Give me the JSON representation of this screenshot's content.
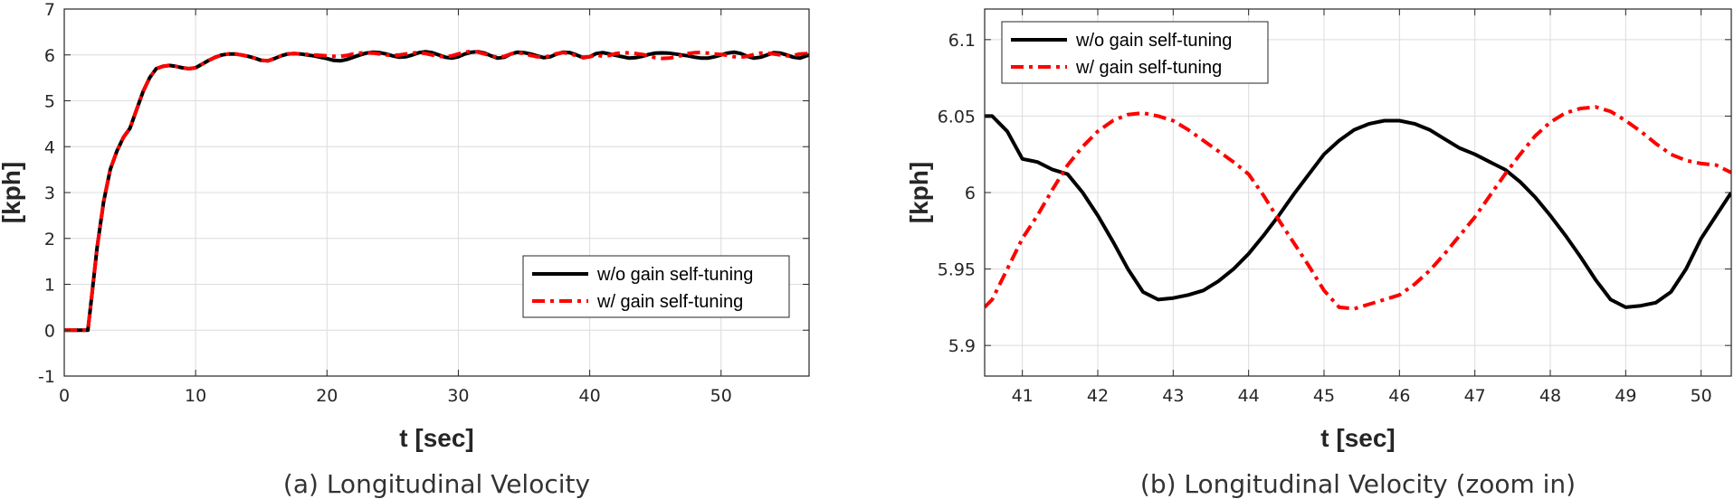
{
  "chart_data": [
    {
      "type": "line",
      "caption": "(a) Longitudinal Velocity",
      "xlabel": "t [sec]",
      "ylabel": "[kph]",
      "xlim": [
        0,
        56.7
      ],
      "ylim": [
        -1,
        7
      ],
      "xticks": [
        0,
        10,
        20,
        30,
        40,
        50
      ],
      "yticks": [
        -1,
        0,
        1,
        2,
        3,
        4,
        5,
        6,
        7
      ],
      "grid": true,
      "legend_position": "lower-right",
      "series": [
        {
          "name": "w/o gain self-tuning",
          "color": "#000000",
          "style": "solid",
          "x": [
            0,
            1.8,
            2,
            2.5,
            3,
            3.5,
            4,
            4.5,
            5,
            5.5,
            6,
            6.5,
            7,
            7.5,
            8,
            8.5,
            9,
            9.5,
            10,
            10.5,
            11,
            11.5,
            12,
            12.5,
            13,
            13.5,
            14,
            14.5,
            15,
            15.5,
            16,
            16.5,
            17,
            17.5,
            18,
            18.5,
            19,
            19.5,
            20,
            20.5,
            21,
            21.5,
            22,
            22.5,
            23,
            23.5,
            24,
            24.5,
            25,
            25.5,
            26,
            26.5,
            27,
            27.5,
            28,
            28.5,
            29,
            29.5,
            30,
            30.5,
            31,
            31.5,
            32,
            32.5,
            33,
            33.5,
            34,
            34.5,
            35,
            35.5,
            36,
            36.5,
            37,
            37.5,
            38,
            38.5,
            39,
            39.5,
            40,
            40.5,
            41,
            41.5,
            42,
            42.5,
            43,
            43.5,
            44,
            44.5,
            45,
            45.5,
            46,
            46.5,
            47,
            47.5,
            48,
            48.5,
            49,
            49.5,
            50,
            50.5,
            51,
            51.5,
            52,
            52.5,
            53,
            53.5,
            54,
            54.5,
            55,
            55.5,
            56,
            56.7
          ],
          "y": [
            0,
            0,
            0.5,
            1.8,
            2.8,
            3.5,
            3.9,
            4.2,
            4.4,
            4.8,
            5.2,
            5.5,
            5.7,
            5.75,
            5.77,
            5.75,
            5.72,
            5.7,
            5.72,
            5.8,
            5.88,
            5.95,
            6.0,
            6.02,
            6.02,
            6.0,
            5.97,
            5.93,
            5.88,
            5.87,
            5.92,
            5.98,
            6.02,
            6.03,
            6.02,
            6.0,
            5.98,
            5.95,
            5.92,
            5.88,
            5.87,
            5.9,
            5.95,
            6.0,
            6.04,
            6.06,
            6.05,
            6.02,
            5.98,
            5.95,
            5.96,
            6.0,
            6.05,
            6.07,
            6.05,
            6.0,
            5.95,
            5.93,
            5.96,
            6.02,
            6.06,
            6.07,
            6.04,
            5.98,
            5.93,
            5.95,
            6.02,
            6.06,
            6.05,
            6.02,
            5.98,
            5.94,
            5.96,
            6.02,
            6.06,
            6.05,
            6.0,
            5.94,
            5.96,
            6.03,
            6.05,
            6.02,
            5.99,
            5.96,
            5.93,
            5.94,
            5.97,
            6.01,
            6.04,
            6.045,
            6.04,
            6.02,
            6.0,
            5.98,
            5.95,
            5.93,
            5.93,
            5.96,
            6.0,
            6.04,
            6.06,
            6.03,
            5.97,
            5.93,
            5.95,
            6.0,
            6.05,
            6.04,
            6.0,
            5.95,
            5.93,
            6.0
          ]
        },
        {
          "name": "w/ gain self-tuning",
          "color": "#ff0000",
          "style": "dashdot",
          "x": [
            0,
            1.8,
            2,
            2.5,
            3,
            3.5,
            4,
            4.5,
            5,
            5.5,
            6,
            6.5,
            7,
            7.5,
            8,
            8.5,
            9,
            9.5,
            10,
            10.5,
            11,
            11.5,
            12,
            12.5,
            13,
            13.5,
            14,
            14.5,
            15,
            15.5,
            16,
            16.5,
            17,
            17.5,
            18,
            18.5,
            19,
            19.5,
            20,
            20.5,
            21,
            21.5,
            22,
            22.5,
            23,
            23.5,
            24,
            24.5,
            25,
            25.5,
            26,
            26.5,
            27,
            27.5,
            28,
            28.5,
            29,
            29.5,
            30,
            30.5,
            31,
            31.5,
            32,
            32.5,
            33,
            33.5,
            34,
            34.5,
            35,
            35.5,
            36,
            36.5,
            37,
            37.5,
            38,
            38.5,
            39,
            39.5,
            40,
            40.5,
            41,
            41.5,
            42,
            42.5,
            43,
            43.5,
            44,
            44.5,
            45,
            45.5,
            46,
            46.5,
            47,
            47.5,
            48,
            48.5,
            49,
            49.5,
            50,
            50.5,
            51,
            51.5,
            52,
            52.5,
            53,
            53.5,
            54,
            54.5,
            55,
            55.5,
            56,
            56.7
          ],
          "y": [
            0,
            0,
            0.5,
            1.8,
            2.8,
            3.5,
            3.9,
            4.2,
            4.4,
            4.8,
            5.2,
            5.5,
            5.7,
            5.75,
            5.77,
            5.75,
            5.72,
            5.7,
            5.72,
            5.8,
            5.88,
            5.95,
            6.0,
            6.02,
            6.02,
            6.0,
            5.97,
            5.93,
            5.88,
            5.87,
            5.92,
            5.98,
            6.02,
            6.03,
            6.02,
            6.01,
            6.0,
            5.99,
            5.98,
            5.97,
            5.97,
            5.99,
            6.02,
            6.04,
            6.05,
            6.04,
            6.02,
            6.0,
            5.99,
            6.0,
            6.02,
            6.04,
            6.05,
            6.03,
            6.0,
            5.97,
            5.96,
            5.98,
            6.02,
            6.06,
            6.08,
            6.06,
            6.02,
            5.98,
            5.95,
            5.97,
            6.02,
            6.05,
            6.03,
            5.99,
            5.96,
            5.95,
            5.98,
            6.03,
            6.05,
            6.03,
            5.98,
            5.95,
            5.96,
            6.0,
            5.97,
            5.99,
            6.03,
            6.05,
            6.045,
            6.03,
            6.01,
            5.98,
            5.94,
            5.925,
            5.93,
            5.95,
            5.99,
            6.03,
            6.05,
            6.055,
            6.04,
            6.02,
            6.01,
            5.99,
            5.96,
            5.95,
            5.97,
            6.01,
            6.04,
            6.04,
            6.02,
            6.0,
            5.98,
            5.99,
            6.02,
            6.03
          ]
        }
      ]
    },
    {
      "type": "line",
      "caption": "(b) Longitudinal Velocity (zoom in)",
      "xlabel": "t [sec]",
      "ylabel": "[kph]",
      "xlim": [
        40.5,
        50.4
      ],
      "ylim": [
        5.88,
        6.12
      ],
      "xticks": [
        41,
        42,
        43,
        44,
        45,
        46,
        47,
        48,
        49,
        50
      ],
      "yticks": [
        5.9,
        5.95,
        6,
        6.05,
        6.1
      ],
      "ytick_labels": [
        "5.9",
        "5.95",
        "6",
        "6.05",
        "6.1"
      ],
      "grid": true,
      "legend_position": "top-left",
      "series": [
        {
          "name": "w/o gain self-tuning",
          "color": "#000000",
          "style": "solid",
          "x": [
            40.5,
            40.6,
            40.8,
            41.0,
            41.2,
            41.4,
            41.6,
            41.8,
            42.0,
            42.2,
            42.4,
            42.6,
            42.8,
            43.0,
            43.2,
            43.4,
            43.6,
            43.8,
            44.0,
            44.2,
            44.4,
            44.6,
            44.8,
            45.0,
            45.2,
            45.4,
            45.6,
            45.8,
            46.0,
            46.2,
            46.4,
            46.6,
            46.8,
            47.0,
            47.2,
            47.4,
            47.6,
            47.8,
            48.0,
            48.2,
            48.4,
            48.6,
            48.8,
            49.0,
            49.2,
            49.4,
            49.6,
            49.8,
            50.0,
            50.2,
            50.4
          ],
          "y": [
            6.05,
            6.05,
            6.04,
            6.022,
            6.02,
            6.015,
            6.012,
            6.0,
            5.985,
            5.968,
            5.95,
            5.935,
            5.93,
            5.931,
            5.933,
            5.936,
            5.942,
            5.95,
            5.96,
            5.972,
            5.985,
            5.999,
            6.012,
            6.025,
            6.034,
            6.041,
            6.045,
            6.047,
            6.047,
            6.045,
            6.041,
            6.035,
            6.029,
            6.025,
            6.02,
            6.015,
            6.007,
            5.997,
            5.985,
            5.972,
            5.958,
            5.943,
            5.93,
            5.925,
            5.926,
            5.928,
            5.935,
            5.95,
            5.97,
            5.985,
            6.0
          ]
        },
        {
          "name": "w/ gain self-tuning",
          "color": "#ff0000",
          "style": "dashdot",
          "x": [
            40.5,
            40.6,
            40.8,
            41.0,
            41.2,
            41.4,
            41.6,
            41.8,
            42.0,
            42.2,
            42.4,
            42.6,
            42.8,
            43.0,
            43.2,
            43.4,
            43.6,
            43.8,
            44.0,
            44.2,
            44.4,
            44.6,
            44.8,
            45.0,
            45.2,
            45.4,
            45.6,
            45.8,
            46.0,
            46.2,
            46.4,
            46.6,
            46.8,
            47.0,
            47.2,
            47.4,
            47.6,
            47.8,
            48.0,
            48.2,
            48.4,
            48.6,
            48.8,
            49.0,
            49.2,
            49.4,
            49.6,
            49.8,
            50.0,
            50.2,
            50.4
          ],
          "y": [
            5.925,
            5.93,
            5.95,
            5.97,
            5.985,
            6.002,
            6.018,
            6.03,
            6.04,
            6.047,
            6.051,
            6.052,
            6.05,
            6.047,
            6.041,
            6.034,
            6.027,
            6.02,
            6.012,
            5.998,
            5.982,
            5.967,
            5.952,
            5.936,
            5.925,
            5.924,
            5.927,
            5.93,
            5.933,
            5.94,
            5.949,
            5.96,
            5.972,
            5.984,
            5.998,
            6.012,
            6.025,
            6.037,
            6.046,
            6.052,
            6.055,
            6.056,
            6.053,
            6.047,
            6.04,
            6.032,
            6.025,
            6.021,
            6.019,
            6.018,
            6.013
          ]
        }
      ]
    }
  ]
}
